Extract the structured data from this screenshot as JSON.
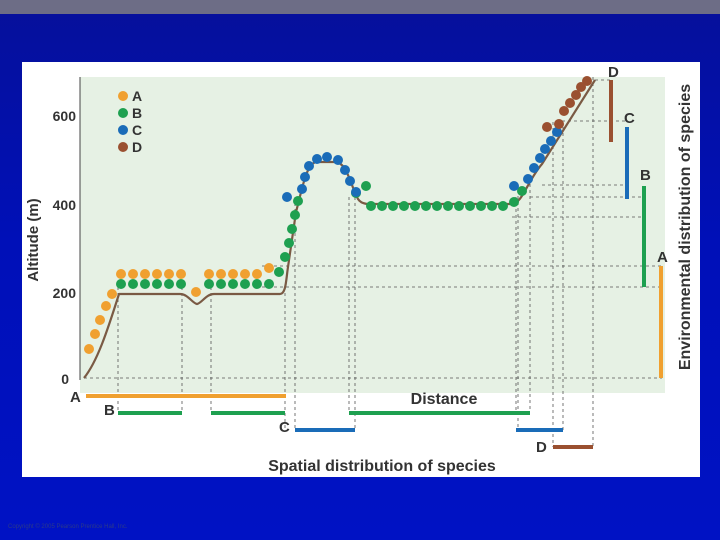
{
  "figure": {
    "y_axis_label": "Altitude (m)",
    "y_ticks": [
      "0",
      "200",
      "400",
      "600"
    ],
    "x_axis_label": "Distance",
    "bottom_title": "Spatial distribution of species",
    "right_title": "Environmental distribution of species",
    "legend": [
      {
        "label": "A",
        "color": "#f0a030"
      },
      {
        "label": "B",
        "color": "#1ea050"
      },
      {
        "label": "C",
        "color": "#1a6cb8"
      },
      {
        "label": "D",
        "color": "#9a5030"
      }
    ],
    "spatial_labels": [
      "A",
      "B",
      "C",
      "D"
    ],
    "environmental_labels": [
      "A",
      "B",
      "C",
      "D"
    ],
    "colors": {
      "terrain_line": "#7a5a44",
      "panel_fill": "#e6f1e4",
      "species_A": "#f0a030",
      "species_B": "#1ea050",
      "species_C": "#1a6cb8",
      "species_D": "#9a5030"
    }
  },
  "footer": {
    "copyright": "Copyright © 2005 Pearson Prentice Hall, Inc."
  }
}
